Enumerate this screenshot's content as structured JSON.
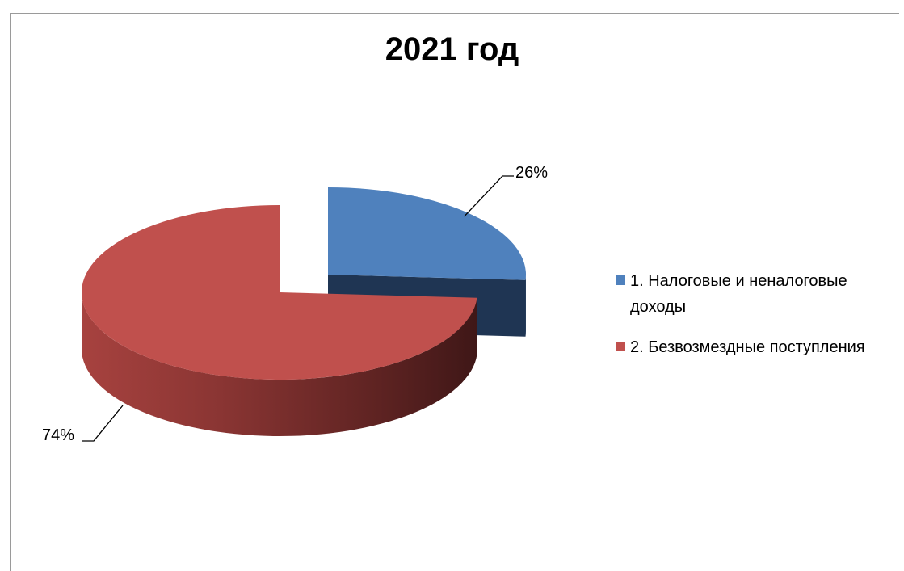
{
  "chart_data": {
    "type": "pie",
    "title": "2021 год",
    "categories": [
      "1. Налоговые и неналоговые доходы",
      "2. Безвозмездные поступления"
    ],
    "values": [
      26,
      74
    ],
    "labels": [
      "26%",
      "74%"
    ],
    "colors": [
      "#4f81bd",
      "#c0504d"
    ],
    "legend_position": "right",
    "style": "3d-exploded"
  }
}
